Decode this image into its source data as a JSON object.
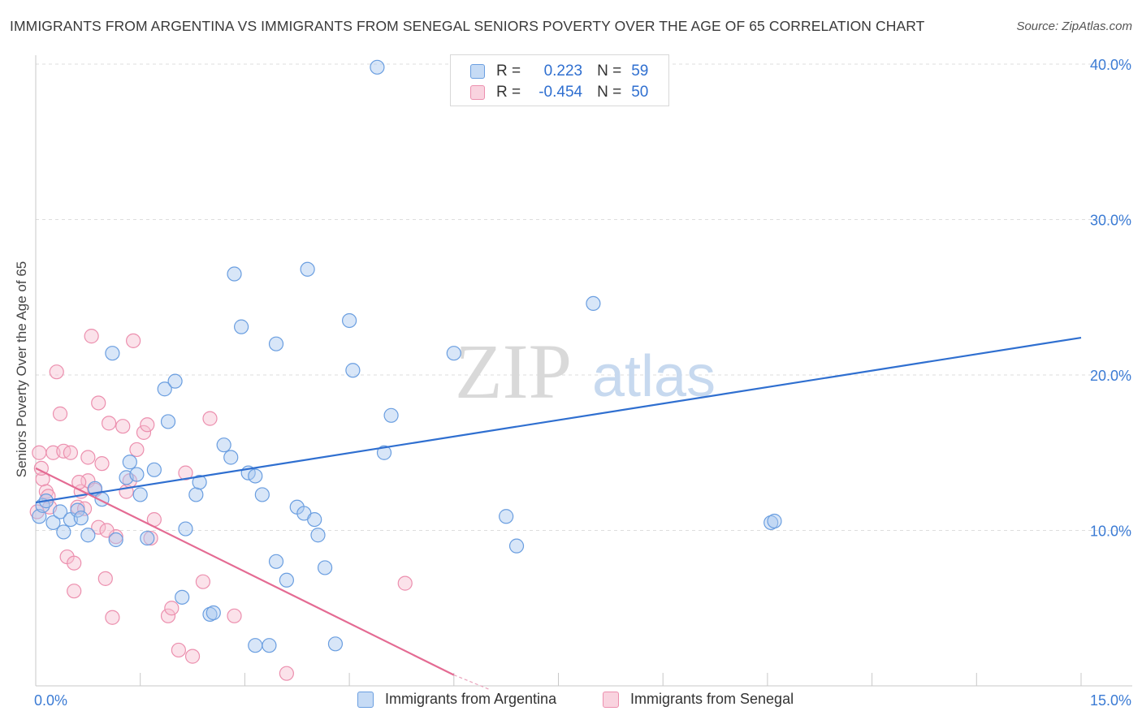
{
  "title": "IMMIGRANTS FROM ARGENTINA VS IMMIGRANTS FROM SENEGAL SENIORS POVERTY OVER THE AGE OF 65 CORRELATION CHART",
  "source": "Source: ZipAtlas.com",
  "watermark": {
    "zip": "ZIP",
    "atlas": "atlas"
  },
  "legend": {
    "rows": [
      {
        "r_label": "R =",
        "r_value": "0.223",
        "n_label": "N =",
        "n_value": "59",
        "color": "#a9c8f0",
        "edge": "#6a9ee0"
      },
      {
        "r_label": "R =",
        "r_value": "-0.454",
        "n_label": "N =",
        "n_value": "50",
        "color": "#f6bfd0",
        "edge": "#ec8fae"
      }
    ]
  },
  "bottom_legend": {
    "argentina": "Immigrants from Argentina",
    "senegal": "Immigrants from Senegal"
  },
  "chart_data": {
    "type": "scatter",
    "title": "IMMIGRANTS FROM ARGENTINA VS IMMIGRANTS FROM SENEGAL SENIORS POVERTY OVER THE AGE OF 65 CORRELATION CHART",
    "xlabel": "",
    "ylabel": "Seniors Poverty Over the Age of 65",
    "xlim": [
      0,
      15
    ],
    "ylim": [
      0,
      40
    ],
    "x_tick_labels": [
      "0.0%",
      "15.0%"
    ],
    "y_ticks": [
      10,
      20,
      30,
      40
    ],
    "y_tick_labels": [
      "10.0%",
      "20.0%",
      "30.0%",
      "40.0%"
    ],
    "grid": "horizontal dashed",
    "colors": {
      "argentina": "#2f6fd0",
      "senegal": "#e46b93",
      "argentina_fill": "#a9c8f0",
      "senegal_fill": "#f6bfd0"
    },
    "series": [
      {
        "name": "Immigrants from Argentina",
        "trend": {
          "x": [
            0,
            15
          ],
          "y": [
            11.8,
            22.4
          ]
        },
        "points": [
          [
            0.05,
            10.9
          ],
          [
            0.1,
            11.6
          ],
          [
            0.15,
            11.9
          ],
          [
            0.25,
            10.5
          ],
          [
            0.35,
            11.2
          ],
          [
            0.4,
            9.9
          ],
          [
            0.5,
            10.7
          ],
          [
            0.6,
            11.3
          ],
          [
            0.65,
            10.8
          ],
          [
            0.75,
            9.7
          ],
          [
            0.85,
            12.7
          ],
          [
            0.95,
            12.0
          ],
          [
            1.15,
            9.4
          ],
          [
            1.1,
            21.4
          ],
          [
            1.3,
            13.4
          ],
          [
            1.35,
            14.4
          ],
          [
            1.45,
            13.6
          ],
          [
            1.5,
            12.3
          ],
          [
            1.6,
            9.5
          ],
          [
            1.7,
            13.9
          ],
          [
            1.85,
            19.1
          ],
          [
            1.9,
            17.0
          ],
          [
            2.0,
            19.6
          ],
          [
            2.1,
            5.7
          ],
          [
            2.15,
            10.1
          ],
          [
            2.3,
            12.3
          ],
          [
            2.35,
            13.1
          ],
          [
            2.5,
            4.6
          ],
          [
            2.55,
            4.7
          ],
          [
            2.7,
            15.5
          ],
          [
            2.8,
            14.7
          ],
          [
            2.85,
            26.5
          ],
          [
            2.95,
            23.1
          ],
          [
            3.05,
            13.7
          ],
          [
            3.15,
            13.5
          ],
          [
            3.15,
            2.6
          ],
          [
            3.25,
            12.3
          ],
          [
            3.35,
            2.6
          ],
          [
            3.45,
            8.0
          ],
          [
            3.45,
            22.0
          ],
          [
            3.6,
            6.8
          ],
          [
            3.75,
            11.5
          ],
          [
            3.85,
            11.1
          ],
          [
            3.9,
            26.8
          ],
          [
            4.0,
            10.7
          ],
          [
            4.05,
            9.7
          ],
          [
            4.15,
            7.6
          ],
          [
            4.3,
            2.7
          ],
          [
            4.5,
            23.5
          ],
          [
            4.55,
            20.3
          ],
          [
            4.9,
            39.8
          ],
          [
            5.0,
            15.0
          ],
          [
            5.1,
            17.4
          ],
          [
            6.0,
            21.4
          ],
          [
            6.75,
            10.9
          ],
          [
            6.9,
            9.0
          ],
          [
            8.0,
            24.6
          ],
          [
            10.55,
            10.5
          ],
          [
            10.6,
            10.6
          ]
        ]
      },
      {
        "name": "Immigrants from Senegal",
        "trend": {
          "x": [
            0,
            6.0
          ],
          "y": [
            14.0,
            0.7
          ]
        },
        "trend_dashed_to": {
          "x": 6.5,
          "y": -0.4
        },
        "points": [
          [
            0.05,
            15.0
          ],
          [
            0.1,
            13.3
          ],
          [
            0.15,
            12.5
          ],
          [
            0.2,
            11.5
          ],
          [
            0.25,
            15.0
          ],
          [
            0.3,
            20.2
          ],
          [
            0.35,
            17.5
          ],
          [
            0.4,
            15.1
          ],
          [
            0.45,
            8.3
          ],
          [
            0.5,
            15.0
          ],
          [
            0.55,
            7.9
          ],
          [
            0.55,
            6.1
          ],
          [
            0.6,
            11.5
          ],
          [
            0.65,
            12.5
          ],
          [
            0.7,
            11.4
          ],
          [
            0.75,
            13.2
          ],
          [
            0.75,
            14.7
          ],
          [
            0.8,
            22.5
          ],
          [
            0.85,
            12.6
          ],
          [
            0.9,
            10.2
          ],
          [
            0.9,
            18.2
          ],
          [
            0.95,
            14.3
          ],
          [
            1.0,
            6.9
          ],
          [
            1.05,
            16.9
          ],
          [
            1.1,
            4.4
          ],
          [
            1.15,
            9.6
          ],
          [
            1.25,
            16.7
          ],
          [
            1.3,
            12.5
          ],
          [
            1.35,
            13.2
          ],
          [
            1.4,
            22.2
          ],
          [
            1.45,
            15.2
          ],
          [
            1.55,
            16.3
          ],
          [
            1.6,
            16.8
          ],
          [
            1.65,
            9.5
          ],
          [
            1.7,
            10.7
          ],
          [
            1.9,
            4.5
          ],
          [
            1.95,
            5.0
          ],
          [
            2.05,
            2.3
          ],
          [
            2.15,
            13.7
          ],
          [
            2.25,
            1.9
          ],
          [
            2.4,
            6.7
          ],
          [
            2.5,
            17.2
          ],
          [
            2.85,
            4.5
          ],
          [
            3.6,
            0.8
          ],
          [
            5.3,
            6.6
          ],
          [
            0.02,
            11.2
          ],
          [
            0.08,
            14.0
          ],
          [
            0.18,
            12.2
          ],
          [
            0.62,
            13.1
          ],
          [
            1.02,
            10.0
          ]
        ]
      }
    ]
  }
}
